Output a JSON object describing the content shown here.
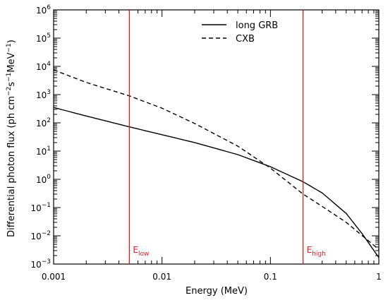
{
  "chart_data": {
    "type": "line",
    "xscale": "log",
    "yscale": "log",
    "xlim": [
      0.001,
      1
    ],
    "ylim": [
      0.001,
      1000000
    ],
    "xlabel": "Energy (MeV)",
    "ylabel": {
      "text": "Differential photon flux (ph cm",
      "exp1": "−2",
      "mid1": "s",
      "exp2": "−1",
      "mid2": "MeV",
      "exp3": "−1",
      "end": ")"
    },
    "x_ticks": [
      "0.001",
      "0.01",
      "0.1",
      "1"
    ],
    "x_tick_values": [
      0.001,
      0.01,
      0.1,
      1
    ],
    "y_ticks": [
      {
        "base": "10",
        "exp": "−3",
        "value": 0.001
      },
      {
        "base": "10",
        "exp": "−2",
        "value": 0.01
      },
      {
        "base": "10",
        "exp": "−1",
        "value": 0.1
      },
      {
        "base": "10",
        "exp": "0",
        "value": 1
      },
      {
        "base": "10",
        "exp": "1",
        "value": 10
      },
      {
        "base": "10",
        "exp": "2",
        "value": 100
      },
      {
        "base": "10",
        "exp": "3",
        "value": 1000
      },
      {
        "base": "10",
        "exp": "4",
        "value": 10000
      },
      {
        "base": "10",
        "exp": "5",
        "value": 100000
      },
      {
        "base": "10",
        "exp": "6",
        "value": 1000000
      }
    ],
    "series": [
      {
        "name": "long GRB",
        "style": "solid",
        "color": "#000000",
        "x": [
          0.001,
          0.002,
          0.005,
          0.01,
          0.02,
          0.05,
          0.1,
          0.2,
          0.3,
          0.5,
          0.7,
          1.0
        ],
        "y": [
          350,
          175,
          72,
          38,
          20,
          7.5,
          2.8,
          0.82,
          0.33,
          0.062,
          0.012,
          0.0017
        ]
      },
      {
        "name": "CXB",
        "style": "dashed",
        "color": "#000000",
        "x": [
          0.001,
          0.002,
          0.005,
          0.01,
          0.02,
          0.05,
          0.1,
          0.2,
          0.3,
          0.5,
          1.0
        ],
        "y": [
          7500,
          2700,
          900,
          330,
          95,
          15,
          2.5,
          0.3,
          0.11,
          0.03,
          0.0033
        ]
      }
    ],
    "markers": [
      {
        "base": "E",
        "sub": "low",
        "x": 0.005,
        "color": "#e31a1c"
      },
      {
        "base": "E",
        "sub": "high",
        "x": 0.2,
        "color": "#e31a1c"
      }
    ],
    "legend": {
      "position": "top-right",
      "entries": [
        {
          "label": "long GRB",
          "style": "solid"
        },
        {
          "label": "CXB",
          "style": "dashed"
        }
      ]
    },
    "grid": false
  }
}
